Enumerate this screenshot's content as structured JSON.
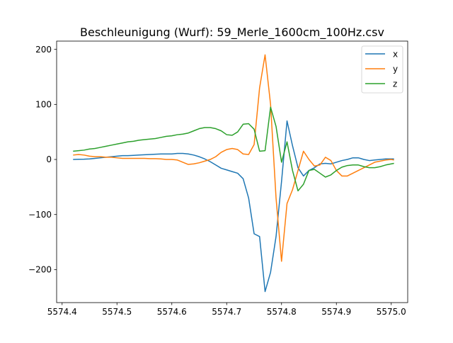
{
  "chart_data": {
    "type": "line",
    "title": "Beschleunigung (Wurf): 59_Merle_1600cm_100Hz.csv",
    "xlabel": "",
    "ylabel": "",
    "xlim": [
      5574.39,
      5575.03
    ],
    "ylim": [
      -260,
      215
    ],
    "x_ticks": [
      5574.4,
      5574.5,
      5574.6,
      5574.7,
      5574.8,
      5574.9,
      5575.0
    ],
    "x_tick_labels": [
      "5574.4",
      "5574.5",
      "5574.6",
      "5574.7",
      "5574.8",
      "5574.9",
      "5575.0"
    ],
    "y_ticks": [
      -200,
      -100,
      0,
      100,
      200
    ],
    "y_tick_labels": [
      "−200",
      "−100",
      "0",
      "100",
      "200"
    ],
    "grid": false,
    "legend_position": "top-right",
    "series": [
      {
        "name": "x",
        "color": "#1f77b4",
        "points": [
          [
            5574.42,
            0
          ],
          [
            5574.43,
            0.3
          ],
          [
            5574.44,
            0.5
          ],
          [
            5574.45,
            1
          ],
          [
            5574.46,
            2
          ],
          [
            5574.47,
            3
          ],
          [
            5574.48,
            4
          ],
          [
            5574.49,
            5
          ],
          [
            5574.5,
            6
          ],
          [
            5574.51,
            7
          ],
          [
            5574.52,
            7
          ],
          [
            5574.53,
            7.5
          ],
          [
            5574.54,
            8
          ],
          [
            5574.55,
            8.5
          ],
          [
            5574.56,
            9
          ],
          [
            5574.57,
            9.5
          ],
          [
            5574.58,
            10
          ],
          [
            5574.59,
            10
          ],
          [
            5574.6,
            10
          ],
          [
            5574.61,
            11
          ],
          [
            5574.62,
            11
          ],
          [
            5574.63,
            10
          ],
          [
            5574.64,
            8
          ],
          [
            5574.65,
            5
          ],
          [
            5574.66,
            1
          ],
          [
            5574.67,
            -4
          ],
          [
            5574.68,
            -10
          ],
          [
            5574.69,
            -16
          ],
          [
            5574.7,
            -19
          ],
          [
            5574.71,
            -22
          ],
          [
            5574.72,
            -25
          ],
          [
            5574.73,
            -35
          ],
          [
            5574.74,
            -70
          ],
          [
            5574.75,
            -135
          ],
          [
            5574.76,
            -140
          ],
          [
            5574.77,
            -240
          ],
          [
            5574.78,
            -205
          ],
          [
            5574.79,
            -140
          ],
          [
            5574.8,
            -40
          ],
          [
            5574.81,
            70
          ],
          [
            5574.82,
            25
          ],
          [
            5574.83,
            -15
          ],
          [
            5574.84,
            -30
          ],
          [
            5574.85,
            -20
          ],
          [
            5574.86,
            -15
          ],
          [
            5574.87,
            -8
          ],
          [
            5574.88,
            -7
          ],
          [
            5574.89,
            -8
          ],
          [
            5574.9,
            -5
          ],
          [
            5574.91,
            -2
          ],
          [
            5574.92,
            0
          ],
          [
            5574.93,
            3
          ],
          [
            5574.94,
            3
          ],
          [
            5574.95,
            0
          ],
          [
            5574.96,
            -2
          ],
          [
            5574.97,
            -1
          ],
          [
            5574.98,
            0
          ],
          [
            5574.99,
            1
          ],
          [
            5575.0,
            1
          ],
          [
            5575.005,
            1
          ]
        ]
      },
      {
        "name": "y",
        "color": "#ff7f0e",
        "points": [
          [
            5574.42,
            8
          ],
          [
            5574.43,
            9
          ],
          [
            5574.44,
            8
          ],
          [
            5574.45,
            6
          ],
          [
            5574.46,
            5
          ],
          [
            5574.47,
            5
          ],
          [
            5574.48,
            4
          ],
          [
            5574.49,
            4
          ],
          [
            5574.5,
            3
          ],
          [
            5574.51,
            2
          ],
          [
            5574.52,
            2
          ],
          [
            5574.53,
            2
          ],
          [
            5574.54,
            2
          ],
          [
            5574.55,
            2
          ],
          [
            5574.56,
            1.5
          ],
          [
            5574.57,
            1.5
          ],
          [
            5574.58,
            1
          ],
          [
            5574.59,
            0
          ],
          [
            5574.6,
            0
          ],
          [
            5574.61,
            -1
          ],
          [
            5574.62,
            -5
          ],
          [
            5574.63,
            -9
          ],
          [
            5574.64,
            -8
          ],
          [
            5574.65,
            -6
          ],
          [
            5574.66,
            -3
          ],
          [
            5574.67,
            0
          ],
          [
            5574.68,
            5
          ],
          [
            5574.69,
            13
          ],
          [
            5574.7,
            18
          ],
          [
            5574.71,
            20
          ],
          [
            5574.72,
            18
          ],
          [
            5574.73,
            10
          ],
          [
            5574.74,
            9
          ],
          [
            5574.75,
            27
          ],
          [
            5574.76,
            130
          ],
          [
            5574.77,
            190
          ],
          [
            5574.78,
            100
          ],
          [
            5574.79,
            -70
          ],
          [
            5574.8,
            -185
          ],
          [
            5574.81,
            -80
          ],
          [
            5574.82,
            -55
          ],
          [
            5574.83,
            -20
          ],
          [
            5574.84,
            15
          ],
          [
            5574.85,
            0
          ],
          [
            5574.86,
            -12
          ],
          [
            5574.87,
            -10
          ],
          [
            5574.88,
            4
          ],
          [
            5574.89,
            -2
          ],
          [
            5574.9,
            -20
          ],
          [
            5574.91,
            -30
          ],
          [
            5574.92,
            -30
          ],
          [
            5574.93,
            -25
          ],
          [
            5574.94,
            -20
          ],
          [
            5574.95,
            -15
          ],
          [
            5574.96,
            -10
          ],
          [
            5574.97,
            -5
          ],
          [
            5574.98,
            -3
          ],
          [
            5574.99,
            -1
          ],
          [
            5575.0,
            0
          ],
          [
            5575.005,
            -1
          ]
        ]
      },
      {
        "name": "z",
        "color": "#2ca02c",
        "points": [
          [
            5574.42,
            15
          ],
          [
            5574.43,
            16
          ],
          [
            5574.44,
            17
          ],
          [
            5574.45,
            19
          ],
          [
            5574.46,
            20
          ],
          [
            5574.47,
            22
          ],
          [
            5574.48,
            24
          ],
          [
            5574.49,
            26
          ],
          [
            5574.5,
            28
          ],
          [
            5574.51,
            30
          ],
          [
            5574.52,
            32
          ],
          [
            5574.53,
            33
          ],
          [
            5574.54,
            35
          ],
          [
            5574.55,
            36
          ],
          [
            5574.56,
            37
          ],
          [
            5574.57,
            38
          ],
          [
            5574.58,
            40
          ],
          [
            5574.59,
            42
          ],
          [
            5574.6,
            43
          ],
          [
            5574.61,
            45
          ],
          [
            5574.62,
            46
          ],
          [
            5574.63,
            48
          ],
          [
            5574.64,
            52
          ],
          [
            5574.65,
            56
          ],
          [
            5574.66,
            58
          ],
          [
            5574.67,
            58
          ],
          [
            5574.68,
            56
          ],
          [
            5574.69,
            52
          ],
          [
            5574.7,
            45
          ],
          [
            5574.71,
            44
          ],
          [
            5574.72,
            50
          ],
          [
            5574.73,
            64
          ],
          [
            5574.74,
            65
          ],
          [
            5574.75,
            55
          ],
          [
            5574.76,
            15
          ],
          [
            5574.77,
            16
          ],
          [
            5574.78,
            95
          ],
          [
            5574.79,
            60
          ],
          [
            5574.8,
            -5
          ],
          [
            5574.81,
            32
          ],
          [
            5574.82,
            -20
          ],
          [
            5574.83,
            -57
          ],
          [
            5574.84,
            -45
          ],
          [
            5574.85,
            -20
          ],
          [
            5574.86,
            -18
          ],
          [
            5574.87,
            -25
          ],
          [
            5574.88,
            -32
          ],
          [
            5574.89,
            -28
          ],
          [
            5574.9,
            -20
          ],
          [
            5574.91,
            -14
          ],
          [
            5574.92,
            -11
          ],
          [
            5574.93,
            -10
          ],
          [
            5574.94,
            -10
          ],
          [
            5574.95,
            -13
          ],
          [
            5574.96,
            -15
          ],
          [
            5574.97,
            -15
          ],
          [
            5574.98,
            -13
          ],
          [
            5574.99,
            -10
          ],
          [
            5575.0,
            -8
          ],
          [
            5575.005,
            -7
          ]
        ]
      }
    ]
  }
}
